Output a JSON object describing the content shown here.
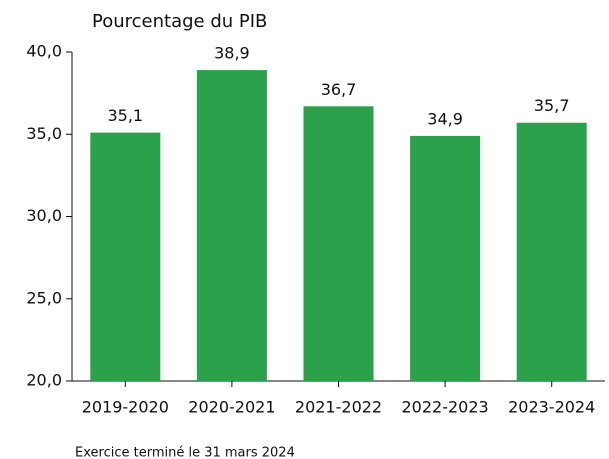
{
  "chart_data": {
    "type": "bar",
    "title": "Pourcentage du PIB",
    "x_label": "Exercice terminé le 31 mars 2024",
    "categories": [
      "2019-2020",
      "2020-2021",
      "2021-2022",
      "2022-2023",
      "2023-2024"
    ],
    "values": [
      35.1,
      38.9,
      36.7,
      34.9,
      35.7
    ],
    "value_labels": [
      "35,1",
      "38,9",
      "36,7",
      "34,9",
      "35,7"
    ],
    "color": "#2ba14b",
    "ylim": [
      20,
      40
    ],
    "yticks": [
      {
        "value": 20,
        "label": "20,0"
      },
      {
        "value": 25,
        "label": "25,0"
      },
      {
        "value": 30,
        "label": "30,0"
      },
      {
        "value": 35,
        "label": "35,0"
      },
      {
        "value": 40,
        "label": "40,0"
      }
    ],
    "grid": false
  }
}
